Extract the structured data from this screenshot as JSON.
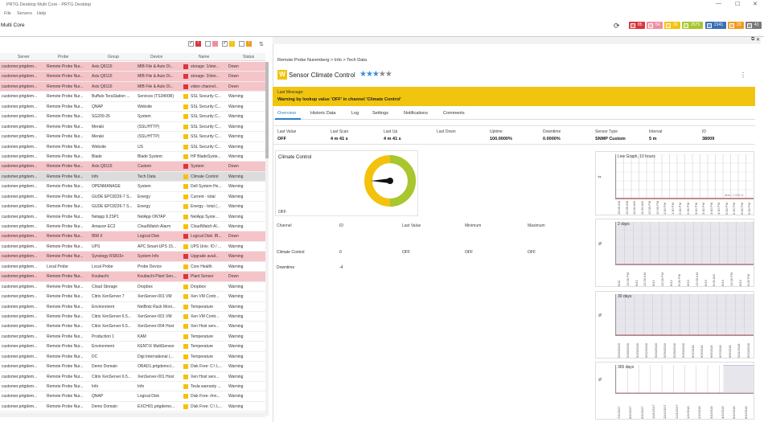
{
  "app": {
    "window_title": "PRTG Desktop Multi Core - PRTG Desktop",
    "menu": [
      "File",
      "Servers",
      "Help"
    ],
    "page_title": "Multi Core"
  },
  "status_badges": [
    {
      "value": "85",
      "color": "#d9363e"
    },
    {
      "value": "54",
      "color": "#f08ea0"
    },
    {
      "value": "36",
      "color": "#f4c20d"
    },
    {
      "value": "2575",
      "color": "#a8c62d"
    },
    {
      "value": "2141",
      "color": "#3a6fb4"
    },
    {
      "value": "23",
      "color": "#f09c1e"
    },
    {
      "value": "41",
      "color": "#7a7a7a"
    }
  ],
  "filter_squares": [
    {
      "checked": "✓",
      "color": "#d9363e",
      "text": "!"
    },
    {
      "checked": "",
      "color": "#f08ea0",
      "text": ""
    },
    {
      "checked": "✓",
      "color": "#f4c20d",
      "text": "!"
    },
    {
      "checked": "",
      "color": "#f09c1e",
      "text": "!"
    }
  ],
  "columns": [
    "Server",
    "Probe",
    "Group",
    "Device",
    "Name",
    "Status"
  ],
  "rows": [
    {
      "server": "customer.prtgdem...",
      "probe": "Remote Probe Nur...",
      "group": "Axis Q6115",
      "device": "MIB File & Auto Di...",
      "name": "storage: 1/stor...",
      "status": "Down",
      "state": "down",
      "icon": "#d9363e"
    },
    {
      "server": "customer.prtgdem...",
      "probe": "Remote Probe Nur...",
      "group": "Axis Q6115",
      "device": "MIB File & Auto Di...",
      "name": "storage: 2/stor...",
      "status": "Down",
      "state": "down",
      "icon": "#d9363e"
    },
    {
      "server": "customer.prtgdem...",
      "probe": "Remote Probe Nur...",
      "group": "Axis Q6115",
      "device": "MIB File & Auto Di...",
      "name": "video channel...",
      "status": "Down",
      "state": "down",
      "icon": "#d9363e"
    },
    {
      "server": "customer.prtgdem...",
      "probe": "Remote Probe Nur...",
      "group": "Buffalo TeraStation ...",
      "device": "Services (TS3400R)",
      "name": "SSL Security C...",
      "status": "Warning",
      "state": "",
      "icon": "#f4c20d"
    },
    {
      "server": "customer.prtgdem...",
      "probe": "Remote Probe Nur...",
      "group": "QNAP",
      "device": "Website",
      "name": "SSL Security C...",
      "status": "Warning",
      "state": "",
      "icon": "#f4c20d"
    },
    {
      "server": "customer.prtgdem...",
      "probe": "Remote Probe Nur...",
      "group": "SG200-26",
      "device": "System",
      "name": "SSL Security C...",
      "status": "Warning",
      "state": "",
      "icon": "#f4c20d"
    },
    {
      "server": "customer.prtgdem...",
      "probe": "Remote Probe Nur...",
      "group": "Meraki",
      "device": "(SSL/HTTP)",
      "name": "SSL Security C...",
      "status": "Warning",
      "state": "",
      "icon": "#f4c20d"
    },
    {
      "server": "customer.prtgdem...",
      "probe": "Remote Probe Nur...",
      "group": "Meraki",
      "device": "(SSL/HTTP)",
      "name": "SSL Security C...",
      "status": "Warning",
      "state": "",
      "icon": "#f4c20d"
    },
    {
      "server": "customer.prtgdem...",
      "probe": "Remote Probe Nur...",
      "group": "Website",
      "device": "US",
      "name": "SSL Security C...",
      "status": "Warning",
      "state": "",
      "icon": "#f4c20d"
    },
    {
      "server": "customer.prtgdem...",
      "probe": "Remote Probe Nur...",
      "group": "Blade",
      "device": "Blade System",
      "name": "HP BladeSyste...",
      "status": "Warning",
      "state": "",
      "icon": "#f4c20d"
    },
    {
      "server": "customer.prtgdem...",
      "probe": "Remote Probe Nur...",
      "group": "Axis Q6115",
      "device": "Custom",
      "name": "System",
      "status": "Down",
      "state": "down",
      "icon": "#d9363e"
    },
    {
      "server": "customer.prtgdem...",
      "probe": "Remote Probe Nur...",
      "group": "Info",
      "device": "Tech Data",
      "name": "Climate Control",
      "status": "Warning",
      "state": "sel",
      "icon": "#f4c20d"
    },
    {
      "server": "customer.prtgdem...",
      "probe": "Remote Probe Nur...",
      "group": "OPENMANAGE",
      "device": "System",
      "name": "Dell System He...",
      "status": "Warning",
      "state": "",
      "icon": "#f4c20d"
    },
    {
      "server": "customer.prtgdem...",
      "probe": "Remote Probe Nur...",
      "group": "GUDE EPC8226-7 S...",
      "device": "Energy",
      "name": "Current - total",
      "status": "Warning",
      "state": "",
      "icon": "#f4c20d"
    },
    {
      "server": "customer.prtgdem...",
      "probe": "Remote Probe Nur...",
      "group": "GUDE EPC8226-7 S...",
      "device": "Energy",
      "name": "Energy - total (...",
      "status": "Warning",
      "state": "",
      "icon": "#f4c20d"
    },
    {
      "server": "customer.prtgdem...",
      "probe": "Remote Probe Nur...",
      "group": "Netapp 9.2SP1",
      "device": "NetApp ONTAP",
      "name": "NetApp Syste...",
      "status": "Warning",
      "state": "",
      "icon": "#f4c20d"
    },
    {
      "server": "customer.prtgdem...",
      "probe": "Remote Probe Nur...",
      "group": "Amazon EC2",
      "device": "CloudWatch Alarm",
      "name": "CloudWatch Al...",
      "status": "Warning",
      "state": "",
      "icon": "#f4c20d"
    },
    {
      "server": "customer.prtgdem...",
      "probe": "Remote Probe Nur...",
      "group": "IBM X",
      "device": "Logical Disk",
      "name": "Logical Disk: IB...",
      "status": "Down",
      "state": "down",
      "icon": "#d9363e"
    },
    {
      "server": "customer.prtgdem...",
      "probe": "Remote Probe Nur...",
      "group": "UPS",
      "device": "APC Smart-UPS 15...",
      "name": "UPS Unix: IO / ...",
      "status": "Warning",
      "state": "",
      "icon": "#f4c20d"
    },
    {
      "server": "customer.prtgdem...",
      "probe": "Remote Probe Nur...",
      "group": "Synology RS815+",
      "device": "System Info",
      "name": "Upgrade avail...",
      "status": "Warning",
      "state": "down",
      "icon": "#d9363e"
    },
    {
      "server": "customer.prtgdem...",
      "probe": "Local Probe",
      "group": "Local Probe",
      "device": "Probe Device",
      "name": "Core Health",
      "status": "Warning",
      "state": "",
      "icon": "#f4c20d"
    },
    {
      "server": "customer.prtgdem...",
      "probe": "Remote Probe Nur...",
      "group": "Koubachi",
      "device": "Koubachi Plant Sen...",
      "name": "Plant Sensor",
      "status": "Down",
      "state": "down",
      "icon": "#d9363e"
    },
    {
      "server": "customer.prtgdem...",
      "probe": "Remote Probe Nur...",
      "group": "Cloud Storage",
      "device": "Dropbox",
      "name": "Dropbox",
      "status": "Warning",
      "state": "",
      "icon": "#f4c20d"
    },
    {
      "server": "customer.prtgdem...",
      "probe": "Remote Probe Nur...",
      "group": "Citrix XenServer 7",
      "device": "XenServer-001 VM",
      "name": "Xen VM Contr...",
      "status": "Warning",
      "state": "",
      "icon": "#f4c20d"
    },
    {
      "server": "customer.prtgdem...",
      "probe": "Remote Probe Nur...",
      "group": "Environment",
      "device": "NetBotz Rack Moni...",
      "name": "Temperature",
      "status": "Warning",
      "state": "",
      "icon": "#f4c20d"
    },
    {
      "server": "customer.prtgdem...",
      "probe": "Remote Probe Nur...",
      "group": "Citrix XenServer 6.5...",
      "device": "XenServer-001 VM",
      "name": "Xen VM Contr...",
      "status": "Warning",
      "state": "",
      "icon": "#f4c20d"
    },
    {
      "server": "customer.prtgdem...",
      "probe": "Remote Probe Nur...",
      "group": "Citrix XenServer 6.5...",
      "device": "XenServer-004 Host",
      "name": "Xen Host serv...",
      "status": "Warning",
      "state": "",
      "icon": "#f4c20d"
    },
    {
      "server": "customer.prtgdem...",
      "probe": "Remote Probe Nur...",
      "group": "Production 1",
      "device": "KAM",
      "name": "Temperature",
      "status": "Warning",
      "state": "",
      "icon": "#f4c20d"
    },
    {
      "server": "customer.prtgdem...",
      "probe": "Remote Probe Nur...",
      "group": "Environment",
      "device": "KENTIX MultiSensor",
      "name": "Temperature",
      "status": "Warning",
      "state": "",
      "icon": "#f4c20d"
    },
    {
      "server": "customer.prtgdem...",
      "probe": "Remote Probe Nur...",
      "group": "DC",
      "device": "Digi International (...",
      "name": "Temperature",
      "status": "Warning",
      "state": "",
      "icon": "#f4c20d"
    },
    {
      "server": "customer.prtgdem...",
      "probe": "Remote Probe Nur...",
      "group": "Demo Domain",
      "device": "ORAD1.prtgdemo.l...",
      "name": "Disk Free: C:\\ L...",
      "status": "Warning",
      "state": "",
      "icon": "#f4c20d"
    },
    {
      "server": "customer.prtgdem...",
      "probe": "Remote Probe Nur...",
      "group": "Citrix XenServer 6.5...",
      "device": "XenServer-001 Host",
      "name": "Xen Host serv...",
      "status": "Warning",
      "state": "",
      "icon": "#f4c20d"
    },
    {
      "server": "customer.prtgdem...",
      "probe": "Remote Probe Nur...",
      "group": "Info",
      "device": "Info",
      "name": "Tesla warranty ...",
      "status": "Warning",
      "state": "",
      "icon": "#f4c20d"
    },
    {
      "server": "customer.prtgdem...",
      "probe": "Remote Probe Nur...",
      "group": "QNAP",
      "device": "Logical Disk",
      "name": "Disk Free: /mn...",
      "status": "Warning",
      "state": "",
      "icon": "#f4c20d"
    },
    {
      "server": "customer.prtgdem...",
      "probe": "Remote Probe Nur...",
      "group": "Demo Domain",
      "device": "EXCH01.prtgdemo...",
      "name": "Disk Free: C:\\ L...",
      "status": "Warning",
      "state": "",
      "icon": "#f4c20d"
    }
  ],
  "detail": {
    "top_icons": [
      "⧉",
      "✕"
    ],
    "breadcrumb": "Remote Probe Nuremberg > Info > Tech Data",
    "sensor_icon_letter": "W",
    "sensor_name": "Sensor Climate Control",
    "stars_filled": "★★★",
    "stars_empty": "★★",
    "priority_stars": 3,
    "message_label": "Last Message:",
    "message": "Warning by lookup value 'OFF' in channel 'Climate Control'",
    "tabs": [
      "Overview",
      "Historic Data",
      "Log",
      "Settings",
      "Notifications",
      "Comments"
    ],
    "stats": [
      {
        "k": "Last Value",
        "v": "OFF"
      },
      {
        "k": "Last Scan",
        "v": "4 m 41 s"
      },
      {
        "k": "Last Up",
        "v": "4 m 41 s"
      },
      {
        "k": "Last Down",
        "v": ""
      },
      {
        "k": "Uptime",
        "v": "100.0000%"
      },
      {
        "k": "Downtime",
        "v": "0.0000%"
      },
      {
        "k": "Sensor Type",
        "v": "SNMP Custom"
      },
      {
        "k": "Interval",
        "v": "5 m"
      },
      {
        "k": "ID",
        "v": "38009"
      }
    ],
    "gauge_title": "Climate Control",
    "gauge_value": "OFF",
    "channel_headers": [
      "Channel",
      "ID",
      "Last Value",
      "Minimum",
      "Maximum"
    ],
    "channels": [
      {
        "channel": "Climate Control",
        "id": "0",
        "last": "OFF",
        "min": "OFF",
        "max": "OFF"
      },
      {
        "channel": "Downtime",
        "id": "-4",
        "last": "",
        "min": "",
        "max": ""
      }
    ]
  },
  "graphs": [
    {
      "title": "Live Graph, 10 hours",
      "ylabel": "#",
      "max_label": "Max: 1.000 #",
      "ticks": [
        "10:00 AM",
        "10:30 AM",
        "11:00 AM",
        "11:30 AM",
        "12:00 PM",
        "12:30 PM",
        "1:00 PM",
        "1:30 PM",
        "2:00 PM",
        "2:30 PM",
        "3:00 PM",
        "3:30 PM",
        "4:00 PM",
        "4:30 PM",
        "5:00 PM",
        "5:30 PM",
        "6:00 PM",
        "6:30 PM"
      ]
    },
    {
      "title": "2 days",
      "ylabel": "%",
      "max_label": "",
      "ticks": [
        "6/11",
        "12:00 PM",
        "6/12",
        "12:00 AM",
        "6/12",
        "12:00 PM",
        "6/12",
        "6:00 PM",
        "6/13",
        "12:00 AM",
        "6/13",
        "6:00 AM",
        "6/13",
        "12:00 PM",
        "6/13",
        "6:00 PM"
      ]
    },
    {
      "title": "30 days",
      "ylabel": "%",
      "max_label": "",
      "ticks": [
        "5/16/2018",
        "5/18/2018",
        "5/20/2018",
        "5/22/2018",
        "5/24/2018",
        "5/26/2018",
        "5/28/2018",
        "5/30/2018",
        "6/1/2018",
        "6/3/2018",
        "6/5/2018",
        "6/7/2018",
        "6/9/2018",
        "6/11/2018",
        "6/13/2018"
      ]
    },
    {
      "title": "365 days",
      "ylabel": "%",
      "max_label": "",
      "ticks": [
        "7/1/2017",
        "8/1/2017",
        "9/1/2017",
        "10/1/2017",
        "11/1/2017",
        "12/1/2017",
        "1/1/2018",
        "2/1/2018",
        "3/1/2018",
        "4/1/2018",
        "5/1/2018",
        "6/1/2018"
      ]
    }
  ]
}
